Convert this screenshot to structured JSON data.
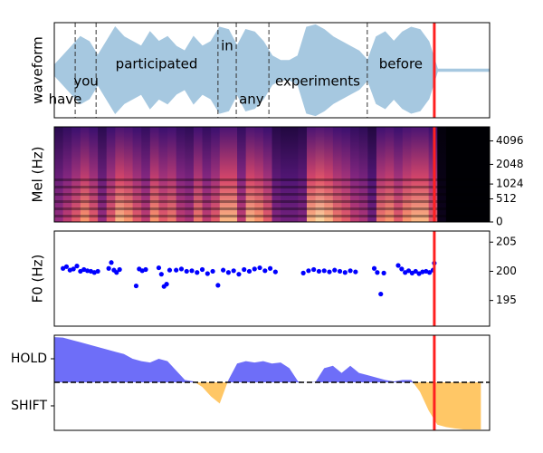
{
  "cursor": 87.3,
  "cursor_color": "#ff2020",
  "chart_data": [
    {
      "type": "waveform",
      "ylabel": "waveform",
      "xlim": [
        0,
        100
      ],
      "ylim": [
        -1,
        1
      ],
      "color": "#a6c8e0",
      "x": [
        0,
        2,
        4,
        6,
        8,
        10,
        12,
        14,
        16,
        18,
        20,
        22,
        24,
        26,
        28,
        30,
        32,
        34,
        36,
        38,
        40,
        42,
        44,
        46,
        48,
        50,
        52,
        54,
        56,
        58,
        60,
        62,
        64,
        66,
        68,
        70,
        72,
        74,
        76,
        78,
        80,
        82,
        84,
        86,
        88,
        90,
        92,
        94,
        96,
        98,
        100
      ],
      "values": [
        0.1,
        0.3,
        0.5,
        0.7,
        0.6,
        0.3,
        0.6,
        0.9,
        0.7,
        0.6,
        0.5,
        0.8,
        0.6,
        0.7,
        0.5,
        0.4,
        0.7,
        0.5,
        0.6,
        0.9,
        0.85,
        0.5,
        0.85,
        0.8,
        0.6,
        0.3,
        0.2,
        0.2,
        0.3,
        0.9,
        0.95,
        0.85,
        0.7,
        0.6,
        0.5,
        0.4,
        0.2,
        0.7,
        0.8,
        0.6,
        0.8,
        0.9,
        0.85,
        0.6,
        0.02,
        0.02,
        0.02,
        0.02,
        0.02,
        0.02,
        0.02
      ],
      "words": [
        {
          "text": "have",
          "x": 2.5
        },
        {
          "text": "you",
          "x": 7.3
        },
        {
          "text": "participated",
          "x": 23.5
        },
        {
          "text": "in",
          "x": 39.7
        },
        {
          "text": "any",
          "x": 45.3
        },
        {
          "text": "experiments",
          "x": 60.5
        },
        {
          "text": "before",
          "x": 79.6
        }
      ],
      "boundaries": [
        4.8,
        9.6,
        37.6,
        41.8,
        49.3,
        71.9
      ]
    },
    {
      "type": "mel",
      "ylabel": "Mel (Hz)",
      "xlim": [
        0,
        100
      ],
      "ylim": [
        0,
        6000
      ],
      "yscale": "mel",
      "ytick_side": "right",
      "yticks": [
        0,
        512,
        1024,
        2048,
        4096
      ],
      "x": [
        0,
        2,
        4,
        6,
        8,
        10,
        12,
        14,
        16,
        18,
        20,
        22,
        24,
        26,
        28,
        30,
        32,
        34,
        36,
        38,
        40,
        42,
        44,
        46,
        48,
        50,
        52,
        54,
        56,
        58,
        60,
        62,
        64,
        66,
        68,
        70,
        72,
        74,
        76,
        78,
        80,
        82,
        84,
        86,
        88,
        90,
        92,
        94,
        96,
        98,
        100
      ],
      "values": [
        0.5,
        0.6,
        0.7,
        0.8,
        0.7,
        0.5,
        0.7,
        0.85,
        0.8,
        0.7,
        0.6,
        0.8,
        0.7,
        0.75,
        0.6,
        0.55,
        0.75,
        0.6,
        0.7,
        0.85,
        0.85,
        0.6,
        0.85,
        0.8,
        0.7,
        0.45,
        0.4,
        0.4,
        0.45,
        0.85,
        0.9,
        0.85,
        0.75,
        0.7,
        0.6,
        0.55,
        0.4,
        0.75,
        0.8,
        0.7,
        0.8,
        0.85,
        0.85,
        0.7,
        0.05,
        0,
        0,
        0,
        0,
        0,
        0
      ]
    },
    {
      "type": "scatter",
      "ylabel": "F0 (Hz)",
      "xlim": [
        0,
        100
      ],
      "ylim": [
        190.6,
        206.9
      ],
      "ytick_side": "right",
      "color": "#0000ff",
      "yticks": [
        195,
        200,
        205
      ],
      "x": [
        2,
        2.8,
        3.6,
        4.4,
        5.2,
        6,
        6.8,
        7.6,
        8.4,
        9.2,
        10,
        12.5,
        13.1,
        13.7,
        14.3,
        15,
        18.8,
        19.5,
        20.2,
        21,
        24,
        24.6,
        25.2,
        25.8,
        26.5,
        28,
        29.2,
        30.4,
        31.6,
        32.8,
        34,
        35.2,
        36.4,
        37.6,
        38.8,
        40,
        41.2,
        42.4,
        43.6,
        44.8,
        46,
        47.2,
        48.4,
        49.6,
        50.8,
        57.2,
        58.4,
        59.6,
        60.8,
        62,
        63.2,
        64.4,
        65.6,
        66.8,
        68,
        69.2,
        73.5,
        74.2,
        75,
        75.7,
        79,
        79.8,
        80.6,
        81.4,
        82.2,
        83,
        83.8,
        84.6,
        85.4,
        86.2,
        87,
        87.3
      ],
      "values": [
        200.5,
        200.8,
        200.2,
        200.4,
        200.9,
        200.0,
        200.3,
        200.1,
        200.0,
        199.8,
        200.0,
        200.5,
        201.5,
        200.2,
        199.8,
        200.3,
        197.5,
        200.4,
        200.1,
        200.3,
        200.6,
        199.5,
        197.4,
        197.8,
        200.2,
        200.2,
        200.4,
        200.0,
        200.1,
        199.8,
        200.3,
        199.6,
        200.0,
        197.6,
        200.2,
        199.8,
        200.1,
        199.5,
        200.3,
        200.0,
        200.4,
        200.6,
        200.1,
        200.5,
        199.9,
        199.7,
        200.1,
        200.3,
        200.0,
        200.1,
        199.9,
        200.2,
        200.0,
        199.8,
        200.1,
        199.9,
        200.5,
        199.8,
        196.1,
        199.7,
        201.0,
        200.4,
        199.8,
        200.1,
        199.7,
        200.0,
        199.6,
        199.9,
        200.0,
        199.8,
        200.2,
        201.4
      ]
    },
    {
      "type": "area",
      "xlim": [
        0,
        100
      ],
      "ylim": [
        -1.02,
        1.0
      ],
      "ytick_side": "left",
      "hline": 0,
      "positive_color": "#6e6ef8",
      "negative_color": "#ffc766",
      "yticks": [
        {
          "value": 0.5,
          "label": "HOLD"
        },
        {
          "value": -0.5,
          "label": "SHIFT"
        }
      ],
      "x": [
        0,
        2,
        4,
        6,
        8,
        10,
        12,
        14,
        16,
        18,
        20,
        22,
        24,
        26,
        28,
        30,
        32,
        34,
        36,
        38,
        40,
        42,
        44,
        46,
        48,
        50,
        52,
        54,
        56,
        58,
        60,
        62,
        64,
        66,
        68,
        70,
        72,
        74,
        76,
        78,
        80,
        82,
        84,
        86,
        88,
        90,
        92,
        94,
        96,
        98
      ],
      "values": [
        0.96,
        0.95,
        0.9,
        0.85,
        0.8,
        0.75,
        0.7,
        0.65,
        0.6,
        0.5,
        0.45,
        0.42,
        0.5,
        0.45,
        0.25,
        0.05,
        0.02,
        -0.1,
        -0.3,
        -0.45,
        0.05,
        0.4,
        0.45,
        0.42,
        0.45,
        0.4,
        0.42,
        0.3,
        0.02,
        0,
        0.01,
        0.3,
        0.35,
        0.2,
        0.35,
        0.2,
        0.15,
        0.1,
        0.05,
        0.02,
        0.05,
        0.05,
        -0.2,
        -0.6,
        -0.9,
        -0.95,
        -0.98,
        -1,
        -1,
        -1
      ]
    }
  ]
}
